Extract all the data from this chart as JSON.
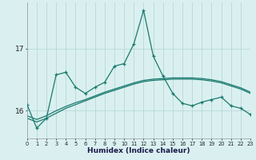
{
  "xlabel": "Humidex (Indice chaleur)",
  "background_color": "#daf0f0",
  "grid_color": "#b8d8d8",
  "line_color": "#1a7a6e",
  "x": [
    0,
    1,
    2,
    3,
    4,
    5,
    6,
    7,
    8,
    9,
    10,
    11,
    12,
    13,
    14,
    15,
    16,
    17,
    18,
    19,
    20,
    21,
    22,
    23
  ],
  "y_main": [
    16.1,
    15.72,
    15.88,
    16.58,
    16.62,
    16.38,
    16.28,
    16.38,
    16.46,
    16.72,
    16.76,
    17.08,
    17.62,
    16.88,
    16.56,
    16.28,
    16.12,
    16.08,
    16.14,
    16.18,
    16.22,
    16.08,
    16.04,
    15.94
  ],
  "y_smooth1": [
    15.88,
    15.82,
    15.88,
    15.96,
    16.04,
    16.1,
    16.16,
    16.22,
    16.28,
    16.33,
    16.38,
    16.43,
    16.47,
    16.49,
    16.5,
    16.51,
    16.51,
    16.51,
    16.5,
    16.48,
    16.45,
    16.4,
    16.35,
    16.28
  ],
  "y_smooth2": [
    15.92,
    15.86,
    15.92,
    16.0,
    16.07,
    16.13,
    16.18,
    16.24,
    16.3,
    16.35,
    16.4,
    16.45,
    16.49,
    16.51,
    16.52,
    16.53,
    16.53,
    16.53,
    16.52,
    16.5,
    16.47,
    16.42,
    16.37,
    16.3
  ],
  "yticks": [
    16,
    17
  ],
  "ylim": [
    15.55,
    17.75
  ],
  "xlim": [
    0,
    23
  ]
}
